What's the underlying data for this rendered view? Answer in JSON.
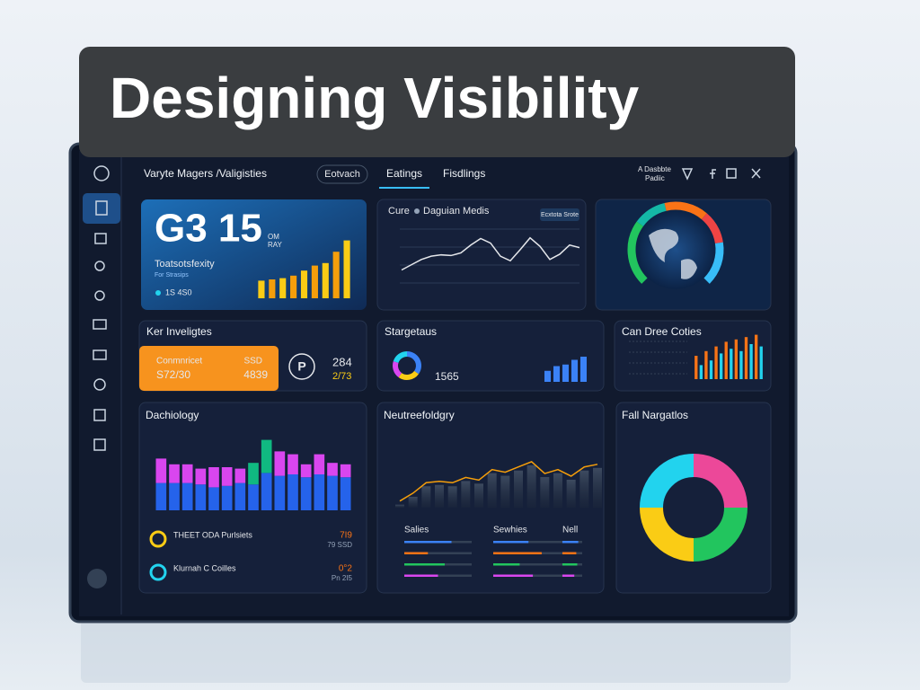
{
  "header": {
    "title": "Designing Visibility"
  },
  "topbar": {
    "breadcrumb": "Varyte Magers /Valigisties",
    "search": "Eotvach",
    "tabs": [
      "Eatings",
      "Fisdlings"
    ],
    "account": [
      "A Dasbbte",
      "Padiic"
    ]
  },
  "hero": {
    "value": "G3 15",
    "unit": [
      "OM",
      "RAY"
    ],
    "label": "Toatsotsfexity",
    "sublabel": "For Strasips",
    "footnote": "1S 4S0",
    "ylim": [
      0,
      100
    ],
    "colors": [
      "#facc15",
      "#f59e0b"
    ],
    "values": [
      28,
      30,
      32,
      36,
      44,
      52,
      56,
      74,
      92
    ]
  },
  "trend": {
    "title": "Cure",
    "subtitle": "Daguian Medis",
    "button": "Ecxtota Srote",
    "color": "#e5e7eb",
    "ylim": [
      0,
      100
    ],
    "values": [
      24,
      32,
      40,
      45,
      47,
      46,
      50,
      62,
      72,
      65,
      45,
      38,
      55,
      73,
      60,
      40,
      48,
      62,
      58
    ]
  },
  "globe": {
    "colors": [
      "#22c55e",
      "#14b8a6",
      "#f97316",
      "#ef4444",
      "#38bdf8"
    ],
    "values": [
      30,
      15,
      20,
      15,
      20
    ]
  },
  "insights": {
    "title": "Ker Inveligtes",
    "card_label": "Conmnricet",
    "card_value": "S72/30",
    "card_unit": "SSD",
    "card_number": "4839",
    "badge": "P",
    "stat": "284",
    "stat_sub": "2/73"
  },
  "status": {
    "title": "Stargetaus",
    "number": "1565",
    "donut_colors": [
      "#3b82f6",
      "#facc15",
      "#d946ef",
      "#22d3ee"
    ],
    "donut": [
      35,
      25,
      20,
      20
    ],
    "ylim": [
      0,
      100
    ],
    "bar_color": "#3b82f6",
    "bars": [
      35,
      50,
      55,
      70,
      80
    ]
  },
  "cities": {
    "title": "Can Dree Coties",
    "ylim": [
      0,
      100
    ],
    "colors": [
      "#f97316",
      "#22d3ee"
    ],
    "values": [
      50,
      30,
      60,
      40,
      70,
      55,
      80,
      65,
      85,
      60,
      90,
      75,
      95,
      70
    ]
  },
  "technology": {
    "title": "Dachiology",
    "ylim": [
      0,
      100
    ],
    "series": [
      {
        "color": "#2563eb",
        "values": [
          38,
          38,
          38,
          36,
          32,
          34,
          38,
          36,
          52,
          48,
          50,
          46,
          50,
          48,
          46
        ]
      },
      {
        "color": "#d946ef",
        "values": [
          34,
          26,
          26,
          22,
          28,
          26,
          20,
          null,
          null,
          34,
          28,
          18,
          28,
          18,
          18
        ]
      },
      {
        "color": "#10b981",
        "values": [
          null,
          null,
          null,
          null,
          null,
          null,
          null,
          30,
          46,
          null,
          null,
          null,
          null,
          null,
          null
        ]
      }
    ],
    "items": [
      {
        "title": "THEET ODA Purlsiets",
        "value": "7I9",
        "sub": "79 SSD"
      },
      {
        "title": "Klurnah C Coilles",
        "value": "0°2",
        "sub": "Pn 2I5"
      }
    ]
  },
  "neuro": {
    "title": "Neutreefoldgry",
    "ylim": [
      0,
      100
    ],
    "line_color": "#f59e0b",
    "values": [
      10,
      22,
      38,
      40,
      38,
      46,
      42,
      58,
      54,
      62,
      70,
      52,
      58,
      48,
      62,
      66
    ],
    "columns": [
      "Salies",
      "Sewhies",
      "Nell"
    ],
    "progress_colors": [
      "#3b82f6",
      "#f97316",
      "#22c55e",
      "#d946ef"
    ],
    "progress": [
      [
        70,
        40,
        80
      ],
      [
        35,
        55,
        70
      ],
      [
        60,
        30,
        75
      ],
      [
        50,
        45,
        60
      ]
    ]
  },
  "navigation": {
    "title": "Fall Nargatlos",
    "colors": [
      "#ec4899",
      "#22c55e",
      "#facc15",
      "#22d3ee"
    ],
    "values": [
      25,
      25,
      25,
      25
    ]
  }
}
